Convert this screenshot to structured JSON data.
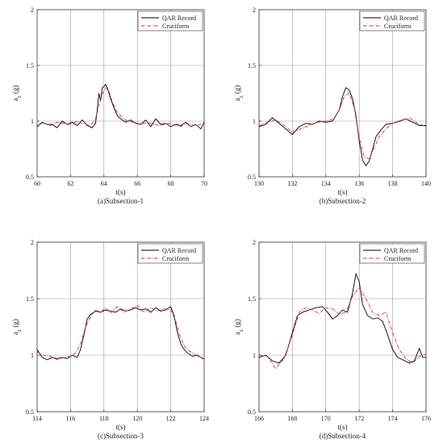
{
  "chart_data": [
    {
      "type": "line",
      "caption": "(a)Subsection-1",
      "xlabel": "t(s)",
      "ylabel": "a_z (g)",
      "xlim": [
        60,
        70
      ],
      "ylim": [
        0.5,
        2
      ],
      "xticks": [
        "60",
        "62",
        "64",
        "66",
        "68",
        "70"
      ],
      "yticks": [
        "0.5",
        "1",
        "1.5",
        "2"
      ],
      "grid": true,
      "legend_position": "top-right",
      "series": [
        {
          "name": "QAR Record",
          "color": "#000000",
          "x": [
            60.0,
            60.3,
            60.6,
            60.9,
            61.2,
            61.5,
            61.8,
            62.1,
            62.4,
            62.7,
            63.0,
            63.3,
            63.5,
            63.6,
            63.7,
            63.8,
            63.9,
            64.0,
            64.1,
            64.2,
            64.4,
            64.6,
            64.8,
            65.0,
            65.3,
            65.6,
            65.9,
            66.2,
            66.5,
            66.8,
            67.1,
            67.4,
            67.7,
            68.0,
            68.3,
            68.6,
            68.9,
            69.2,
            69.5,
            69.8,
            70.0
          ],
          "y": [
            0.95,
            0.99,
            0.97,
            0.97,
            0.94,
            1.0,
            0.97,
            0.99,
            0.96,
            1.01,
            0.96,
            0.94,
            0.98,
            1.1,
            1.25,
            1.18,
            1.3,
            1.31,
            1.33,
            1.3,
            1.2,
            1.12,
            1.05,
            1.02,
            0.99,
            1.01,
            0.98,
            0.97,
            1.01,
            0.95,
            1.02,
            0.97,
            0.98,
            0.95,
            0.97,
            0.96,
            0.99,
            0.95,
            0.97,
            0.93,
            0.99
          ]
        },
        {
          "name": "Cruciform",
          "color": "#d62728",
          "x": [
            60.0,
            60.4,
            60.8,
            61.2,
            61.6,
            62.0,
            62.4,
            62.8,
            63.2,
            63.5,
            63.7,
            63.9,
            64.1,
            64.3,
            64.5,
            64.8,
            65.1,
            65.4,
            65.8,
            66.2,
            66.6,
            67.0,
            67.4,
            67.8,
            68.2,
            68.6,
            69.0,
            69.4,
            69.8,
            70.0
          ],
          "y": [
            0.96,
            0.98,
            0.96,
            0.99,
            0.98,
            0.97,
            1.0,
            0.97,
            0.96,
            1.02,
            1.14,
            1.24,
            1.3,
            1.27,
            1.17,
            1.08,
            1.03,
            1.0,
            0.99,
            0.97,
            0.99,
            0.97,
            0.96,
            0.98,
            0.97,
            0.95,
            0.98,
            0.96,
            0.97,
            0.97
          ]
        }
      ]
    },
    {
      "type": "line",
      "caption": "(b)Subsection-2",
      "xlabel": "t(s)",
      "ylabel": "a_z (g)",
      "xlim": [
        130,
        140
      ],
      "ylim": [
        0.5,
        2
      ],
      "xticks": [
        "130",
        "132",
        "134",
        "136",
        "138",
        "140"
      ],
      "yticks": [
        "0.5",
        "1",
        "1.5",
        "2"
      ],
      "grid": true,
      "legend_position": "top-right",
      "series": [
        {
          "name": "QAR Record",
          "color": "#000000",
          "x": [
            130.0,
            130.4,
            130.8,
            131.2,
            131.6,
            132.0,
            132.4,
            132.8,
            133.2,
            133.6,
            134.0,
            134.4,
            134.8,
            135.0,
            135.2,
            135.4,
            135.6,
            135.8,
            136.0,
            136.2,
            136.4,
            136.6,
            136.8,
            137.0,
            137.3,
            137.6,
            138.0,
            138.4,
            138.8,
            139.2,
            139.6,
            140.0
          ],
          "y": [
            0.95,
            0.97,
            1.03,
            0.98,
            0.93,
            0.88,
            0.95,
            0.98,
            0.97,
            1.0,
            0.99,
            1.0,
            1.1,
            1.22,
            1.3,
            1.28,
            1.2,
            1.05,
            0.82,
            0.65,
            0.6,
            0.64,
            0.75,
            0.86,
            0.92,
            0.97,
            0.98,
            1.0,
            1.02,
            0.99,
            0.96,
            0.96
          ]
        },
        {
          "name": "Cruciform",
          "color": "#d62728",
          "x": [
            130.0,
            130.5,
            131.0,
            131.5,
            132.0,
            132.5,
            133.0,
            133.5,
            134.0,
            134.5,
            134.8,
            135.1,
            135.4,
            135.7,
            136.0,
            136.3,
            136.6,
            136.9,
            137.2,
            137.6,
            138.0,
            138.5,
            139.0,
            139.5,
            140.0
          ],
          "y": [
            0.96,
            0.99,
            1.01,
            0.96,
            0.9,
            0.93,
            0.96,
            0.99,
            1.0,
            1.02,
            1.1,
            1.22,
            1.25,
            1.12,
            0.85,
            0.68,
            0.66,
            0.76,
            0.86,
            0.93,
            0.98,
            1.0,
            1.03,
            0.98,
            0.95
          ]
        }
      ]
    },
    {
      "type": "line",
      "caption": "(c)Subsection-3",
      "xlabel": "t(s)",
      "ylabel": "a_z (g)",
      "xlim": [
        114,
        124
      ],
      "ylim": [
        0.5,
        2
      ],
      "xticks": [
        "114",
        "116",
        "118",
        "120",
        "122",
        "124"
      ],
      "yticks": [
        "0.5",
        "1",
        "1.5",
        "2"
      ],
      "grid": true,
      "legend_position": "top-right",
      "series": [
        {
          "name": "QAR Record",
          "color": "#000000",
          "x": [
            114.0,
            114.3,
            114.6,
            114.9,
            115.2,
            115.5,
            115.8,
            116.1,
            116.4,
            116.6,
            116.8,
            117.0,
            117.2,
            117.5,
            117.8,
            118.1,
            118.4,
            118.7,
            119.0,
            119.3,
            119.6,
            119.9,
            120.2,
            120.5,
            120.8,
            121.1,
            121.4,
            121.7,
            122.0,
            122.2,
            122.4,
            122.6,
            122.8,
            123.0,
            123.3,
            123.6,
            123.9,
            124.0
          ],
          "y": [
            1.05,
            0.98,
            0.96,
            0.98,
            0.97,
            0.98,
            0.97,
            1.0,
            0.98,
            1.05,
            1.18,
            1.32,
            1.36,
            1.39,
            1.38,
            1.4,
            1.39,
            1.38,
            1.41,
            1.39,
            1.4,
            1.42,
            1.4,
            1.41,
            1.38,
            1.42,
            1.39,
            1.4,
            1.43,
            1.35,
            1.2,
            1.1,
            1.05,
            1.02,
            0.99,
            1.0,
            0.97,
            0.97
          ]
        },
        {
          "name": "Cruciform",
          "color": "#d62728",
          "x": [
            114.0,
            114.4,
            114.8,
            115.2,
            115.6,
            116.0,
            116.3,
            116.6,
            116.9,
            117.2,
            117.5,
            117.8,
            118.1,
            118.4,
            118.8,
            119.2,
            119.6,
            120.0,
            120.4,
            120.8,
            121.2,
            121.6,
            122.0,
            122.3,
            122.6,
            122.9,
            123.2,
            123.5,
            123.8,
            124.0
          ],
          "y": [
            1.03,
            1.0,
            0.99,
            0.96,
            0.98,
            0.99,
            1.02,
            1.1,
            1.25,
            1.34,
            1.4,
            1.38,
            1.42,
            1.37,
            1.43,
            1.38,
            1.41,
            1.44,
            1.38,
            1.42,
            1.39,
            1.41,
            1.4,
            1.3,
            1.15,
            1.06,
            1.03,
            1.0,
            0.98,
            0.98
          ]
        }
      ]
    },
    {
      "type": "line",
      "caption": "(d)Subsection-4",
      "xlabel": "t(s)",
      "ylabel": "a_z (g)",
      "xlim": [
        166,
        176
      ],
      "ylim": [
        0.5,
        2
      ],
      "xticks": [
        "166",
        "168",
        "170",
        "172",
        "174",
        "176"
      ],
      "yticks": [
        "0.5",
        "1",
        "1.5",
        "2"
      ],
      "grid": true,
      "legend_position": "top-right",
      "series": [
        {
          "name": "QAR Record",
          "color": "#000000",
          "x": [
            166.0,
            166.4,
            166.8,
            167.2,
            167.6,
            168.0,
            168.3,
            168.6,
            169.0,
            169.4,
            169.8,
            170.1,
            170.4,
            170.7,
            171.0,
            171.3,
            171.6,
            171.8,
            172.0,
            172.2,
            172.5,
            172.8,
            173.1,
            173.4,
            173.7,
            174.0,
            174.3,
            174.6,
            175.0,
            175.3,
            175.6,
            175.8,
            176.0
          ],
          "y": [
            0.98,
            1.0,
            0.95,
            0.93,
            1.0,
            1.2,
            1.35,
            1.38,
            1.4,
            1.42,
            1.43,
            1.38,
            1.32,
            1.35,
            1.4,
            1.38,
            1.55,
            1.72,
            1.65,
            1.45,
            1.35,
            1.32,
            1.33,
            1.3,
            1.18,
            1.05,
            0.98,
            0.96,
            0.93,
            0.95,
            1.06,
            0.98,
            0.98
          ]
        },
        {
          "name": "Cruciform",
          "color": "#d62728",
          "x": [
            166.0,
            166.5,
            167.0,
            167.5,
            168.0,
            168.4,
            168.8,
            169.2,
            169.6,
            170.0,
            170.4,
            170.8,
            171.2,
            171.6,
            172.0,
            172.4,
            172.8,
            173.2,
            173.6,
            174.0,
            174.4,
            174.8,
            175.2,
            175.6,
            176.0
          ],
          "y": [
            1.0,
            0.99,
            0.88,
            0.97,
            1.18,
            1.38,
            1.42,
            1.4,
            1.37,
            1.42,
            1.41,
            1.36,
            1.38,
            1.52,
            1.6,
            1.5,
            1.38,
            1.35,
            1.38,
            1.2,
            1.05,
            0.97,
            0.93,
            0.99,
            1.01
          ]
        }
      ]
    }
  ]
}
